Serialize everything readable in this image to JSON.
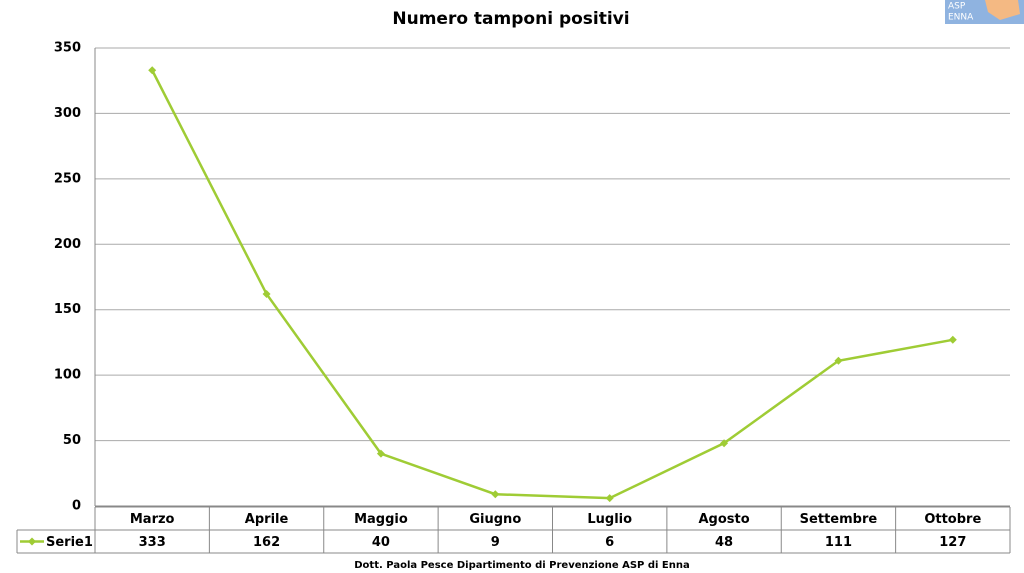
{
  "chart_data": {
    "type": "line",
    "title": "Numero tamponi positivi",
    "categories": [
      "Marzo",
      "Aprile",
      "Maggio",
      "Giugno",
      "Luglio",
      "Agosto",
      "Settembre",
      "Ottobre"
    ],
    "series": [
      {
        "name": "Serie1",
        "color": "#9fcc35",
        "values": [
          333,
          162,
          40,
          9,
          6,
          48,
          111,
          127
        ]
      }
    ],
    "ylim": [
      0,
      350
    ],
    "yticks": [
      0,
      50,
      100,
      150,
      200,
      250,
      300,
      350
    ],
    "grid": true,
    "data_table": true
  },
  "footer": "Dott. Paola Pesce Dipartimento di Prevenzione ASP di Enna",
  "logo": [
    "ASP",
    "ENNA"
  ]
}
